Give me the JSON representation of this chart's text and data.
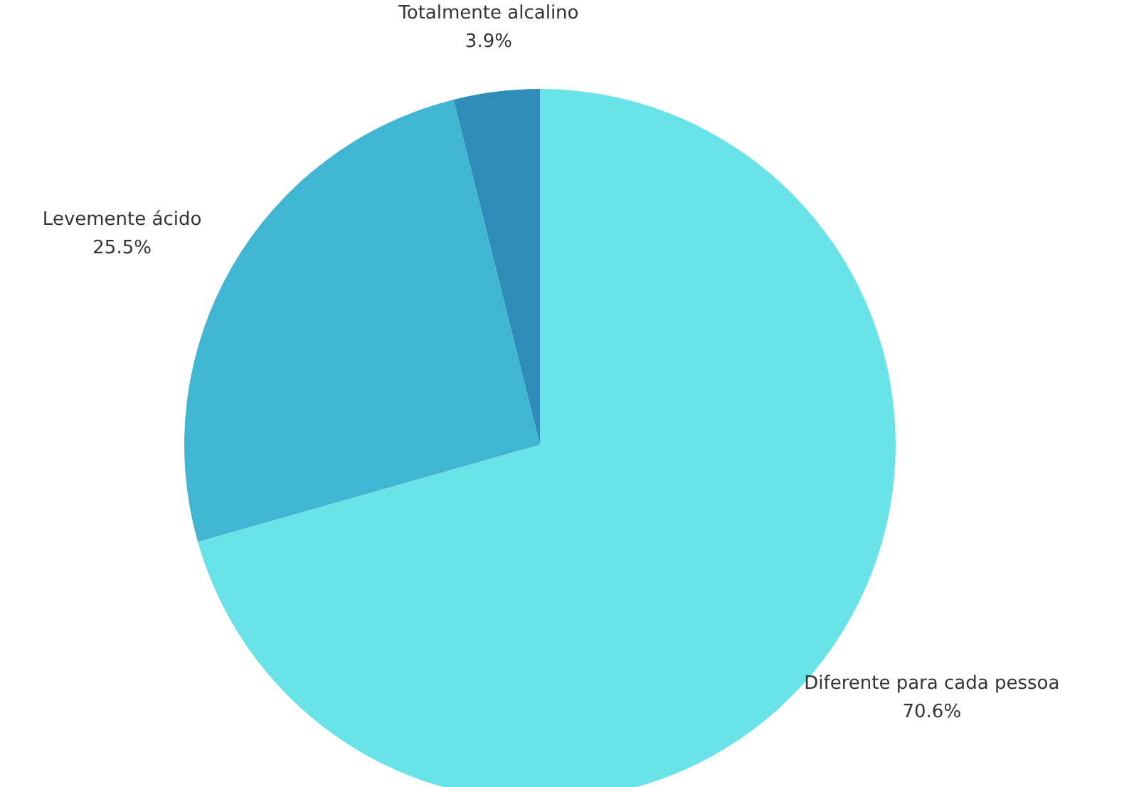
{
  "chart_data": {
    "type": "pie",
    "categories": [
      "Diferente para cada pessoa",
      "Levemente ácido",
      "Totalmente alcalino"
    ],
    "values": [
      70.6,
      25.5,
      3.9
    ],
    "colors": [
      "#6ae3e8",
      "#41b6d2",
      "#2e8cb8"
    ],
    "value_labels": [
      "70.6%",
      "25.5%",
      "3.9%"
    ]
  }
}
